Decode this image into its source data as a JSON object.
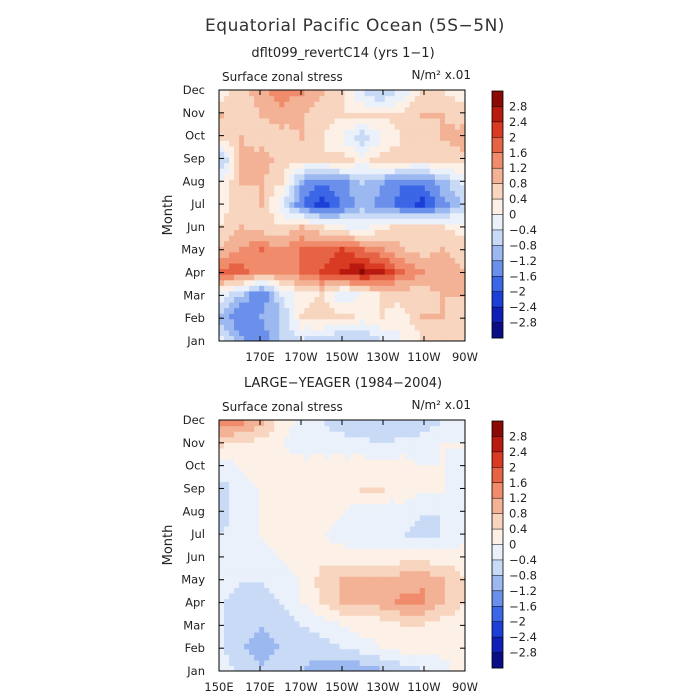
{
  "title": "Equatorial Pacific Ocean (5S−5N)",
  "palette": [
    "#0b0d86",
    "#0f1fb7",
    "#1c3fd8",
    "#3b67e6",
    "#6b90ec",
    "#9cb8f0",
    "#c8daf6",
    "#eaf1fb",
    "#fdf1e7",
    "#f8d5be",
    "#f3b295",
    "#f08c6c",
    "#e76345",
    "#d93a22",
    "#b81a10",
    "#8b0a06"
  ],
  "levels": [
    -2.8,
    -2.4,
    -2,
    -1.6,
    -1.2,
    -0.8,
    -0.4,
    0,
    0.4,
    0.8,
    1.2,
    1.6,
    2,
    2.4,
    2.8
  ],
  "colorbar_labels": [
    "2.8",
    "2.4",
    "2",
    "1.6",
    "1.2",
    "0.8",
    "0.4",
    "0",
    "−0.4",
    "−0.8",
    "−1.2",
    "−1.6",
    "−2",
    "−2.4",
    "−2.8"
  ],
  "panels": [
    {
      "subtitle": "dflt099_revertC14 (yrs 1−1)",
      "left_label": "Surface zonal stress",
      "units": "N/m² x.01",
      "ylabel": "Month",
      "month_labels": [
        "Dec",
        "Nov",
        "Oct",
        "Sep",
        "Aug",
        "Jul",
        "Jun",
        "May",
        "Apr",
        "Mar",
        "Feb",
        "Jan"
      ],
      "lon_labels": [
        "",
        "170E",
        "170W",
        "150W",
        "130W",
        "110W",
        "90W"
      ]
    },
    {
      "subtitle": "LARGE−YEAGER (1984−2004)",
      "left_label": "Surface zonal stress",
      "units": "N/m² x.01",
      "ylabel": "Month",
      "month_labels": [
        "Dec",
        "Nov",
        "Oct",
        "Sep",
        "Aug",
        "Jul",
        "Jun",
        "May",
        "Apr",
        "Mar",
        "Feb",
        "Jan"
      ],
      "lon_labels": [
        "150E",
        "170E",
        "170W",
        "150W",
        "130W",
        "110W",
        "90W"
      ]
    }
  ],
  "chart_data": [
    {
      "type": "heatmap",
      "title": "dflt099_revertC14 (yrs 1−1)",
      "xlabel": "",
      "ylabel": "Month",
      "units": "N/m² x.01",
      "x": [
        "150E",
        "160E",
        "170E",
        "180",
        "170W",
        "160W",
        "150W",
        "140W",
        "130W",
        "120W",
        "110W",
        "100W",
        "90W"
      ],
      "y": [
        "Jan",
        "Feb",
        "Mar",
        "Apr",
        "May",
        "Jun",
        "Jul",
        "Aug",
        "Sep",
        "Oct",
        "Nov",
        "Dec"
      ],
      "values": [
        [
          -0.4,
          -1.2,
          -1.4,
          -0.8,
          -0.4,
          -0.6,
          -0.8,
          -0.8,
          -0.4,
          0.0,
          0.4,
          0.6,
          0.6
        ],
        [
          -1.0,
          -1.6,
          -1.2,
          -0.8,
          0.4,
          0.6,
          0.6,
          0.2,
          0.4,
          0.2,
          0.8,
          0.8,
          0.4
        ],
        [
          -0.2,
          -0.8,
          -1.6,
          -0.4,
          0.2,
          0.4,
          -0.4,
          0.0,
          0.4,
          0.6,
          0.6,
          0.8,
          0.8
        ],
        [
          1.8,
          1.8,
          1.2,
          1.4,
          1.6,
          2.0,
          2.4,
          2.8,
          2.4,
          1.6,
          1.2,
          1.0,
          0.8
        ],
        [
          0.8,
          1.2,
          1.6,
          1.2,
          1.6,
          1.8,
          2.0,
          1.6,
          1.2,
          0.8,
          0.6,
          0.8,
          0.6
        ],
        [
          0.4,
          0.8,
          0.6,
          0.4,
          0.8,
          0.4,
          0.0,
          -0.2,
          0.2,
          0.6,
          0.6,
          0.4,
          0.2
        ],
        [
          0.2,
          0.6,
          0.8,
          -0.2,
          -1.6,
          -2.2,
          -1.6,
          -1.0,
          -1.4,
          -1.8,
          -2.2,
          -1.4,
          -0.8
        ],
        [
          0.0,
          0.8,
          0.8,
          0.4,
          -1.2,
          -1.6,
          -1.4,
          -0.8,
          -1.2,
          -1.6,
          -1.6,
          -1.0,
          -0.4
        ],
        [
          -0.8,
          0.8,
          1.0,
          0.6,
          0.4,
          0.4,
          0.6,
          0.2,
          0.6,
          0.6,
          0.4,
          0.6,
          0.6
        ],
        [
          0.4,
          0.8,
          0.6,
          0.6,
          0.8,
          0.4,
          0.0,
          -0.8,
          0.0,
          0.4,
          0.4,
          0.8,
          1.0
        ],
        [
          0.8,
          0.6,
          0.8,
          1.0,
          0.8,
          0.6,
          0.4,
          0.4,
          0.4,
          0.6,
          0.8,
          0.8,
          0.6
        ],
        [
          0.2,
          0.6,
          1.0,
          1.4,
          1.2,
          0.8,
          0.4,
          -0.4,
          -0.8,
          -0.2,
          0.6,
          0.4,
          0.2
        ]
      ],
      "levels": [
        -2.8,
        -2.4,
        -2,
        -1.6,
        -1.2,
        -0.8,
        -0.4,
        0,
        0.4,
        0.8,
        1.2,
        1.6,
        2,
        2.4,
        2.8
      ]
    },
    {
      "type": "heatmap",
      "title": "LARGE−YEAGER (1984−2004)",
      "xlabel": "",
      "ylabel": "Month",
      "units": "N/m² x.01",
      "x": [
        "150E",
        "160E",
        "170E",
        "180",
        "170W",
        "160W",
        "150W",
        "140W",
        "130W",
        "120W",
        "110W",
        "100W",
        "90W"
      ],
      "y": [
        "Jan",
        "Feb",
        "Mar",
        "Apr",
        "May",
        "Jun",
        "Jul",
        "Aug",
        "Sep",
        "Oct",
        "Nov",
        "Dec"
      ],
      "values": [
        [
          -0.2,
          -0.6,
          -0.8,
          -0.6,
          -0.8,
          -1.0,
          -1.2,
          -1.0,
          -0.8,
          -0.6,
          -0.4,
          -0.2,
          0.2
        ],
        [
          -0.4,
          -0.8,
          -1.0,
          -0.8,
          -0.6,
          -0.6,
          -0.4,
          -0.2,
          0.0,
          0.2,
          0.2,
          0.2,
          0.2
        ],
        [
          -0.4,
          -0.6,
          -0.8,
          -0.6,
          -0.4,
          -0.2,
          0.0,
          0.2,
          0.2,
          0.4,
          0.4,
          0.2,
          0.2
        ],
        [
          -0.4,
          -0.6,
          -0.6,
          -0.4,
          0.0,
          0.4,
          0.8,
          0.9,
          1.0,
          1.3,
          1.3,
          0.8,
          0.4
        ],
        [
          -0.2,
          -0.4,
          -0.4,
          -0.2,
          0.0,
          0.6,
          0.8,
          0.8,
          0.9,
          1.0,
          1.1,
          0.8,
          0.4
        ],
        [
          -0.2,
          -0.2,
          -0.2,
          0.0,
          0.2,
          0.2,
          0.2,
          0.2,
          0.2,
          0.2,
          0.2,
          0.2,
          0.2
        ],
        [
          -0.4,
          -0.2,
          0.0,
          0.2,
          0.2,
          0.0,
          -0.2,
          -0.4,
          -0.4,
          -0.4,
          -0.6,
          -0.4,
          -0.2
        ],
        [
          -0.6,
          -0.2,
          0.0,
          0.2,
          0.2,
          0.2,
          0.0,
          -0.2,
          -0.4,
          -0.2,
          -0.4,
          -0.4,
          -0.2
        ],
        [
          -0.6,
          -0.2,
          0.0,
          0.2,
          0.2,
          0.2,
          0.2,
          0.4,
          0.4,
          0.2,
          0.0,
          0.0,
          -0.2
        ],
        [
          -0.2,
          0.0,
          0.2,
          0.2,
          0.2,
          0.2,
          0.2,
          0.2,
          0.2,
          0.2,
          0.0,
          0.0,
          -0.2
        ],
        [
          0.4,
          0.2,
          0.2,
          0.0,
          -0.2,
          -0.2,
          -0.2,
          -0.2,
          -0.4,
          -0.2,
          -0.2,
          0.0,
          0.0
        ],
        [
          1.4,
          1.2,
          0.8,
          0.2,
          -0.2,
          -0.4,
          -0.6,
          -0.8,
          -0.8,
          -0.8,
          -0.6,
          -0.4,
          -0.2
        ]
      ],
      "levels": [
        -2.8,
        -2.4,
        -2,
        -1.6,
        -1.2,
        -0.8,
        -0.4,
        0,
        0.4,
        0.8,
        1.2,
        1.6,
        2,
        2.4,
        2.8
      ]
    }
  ]
}
